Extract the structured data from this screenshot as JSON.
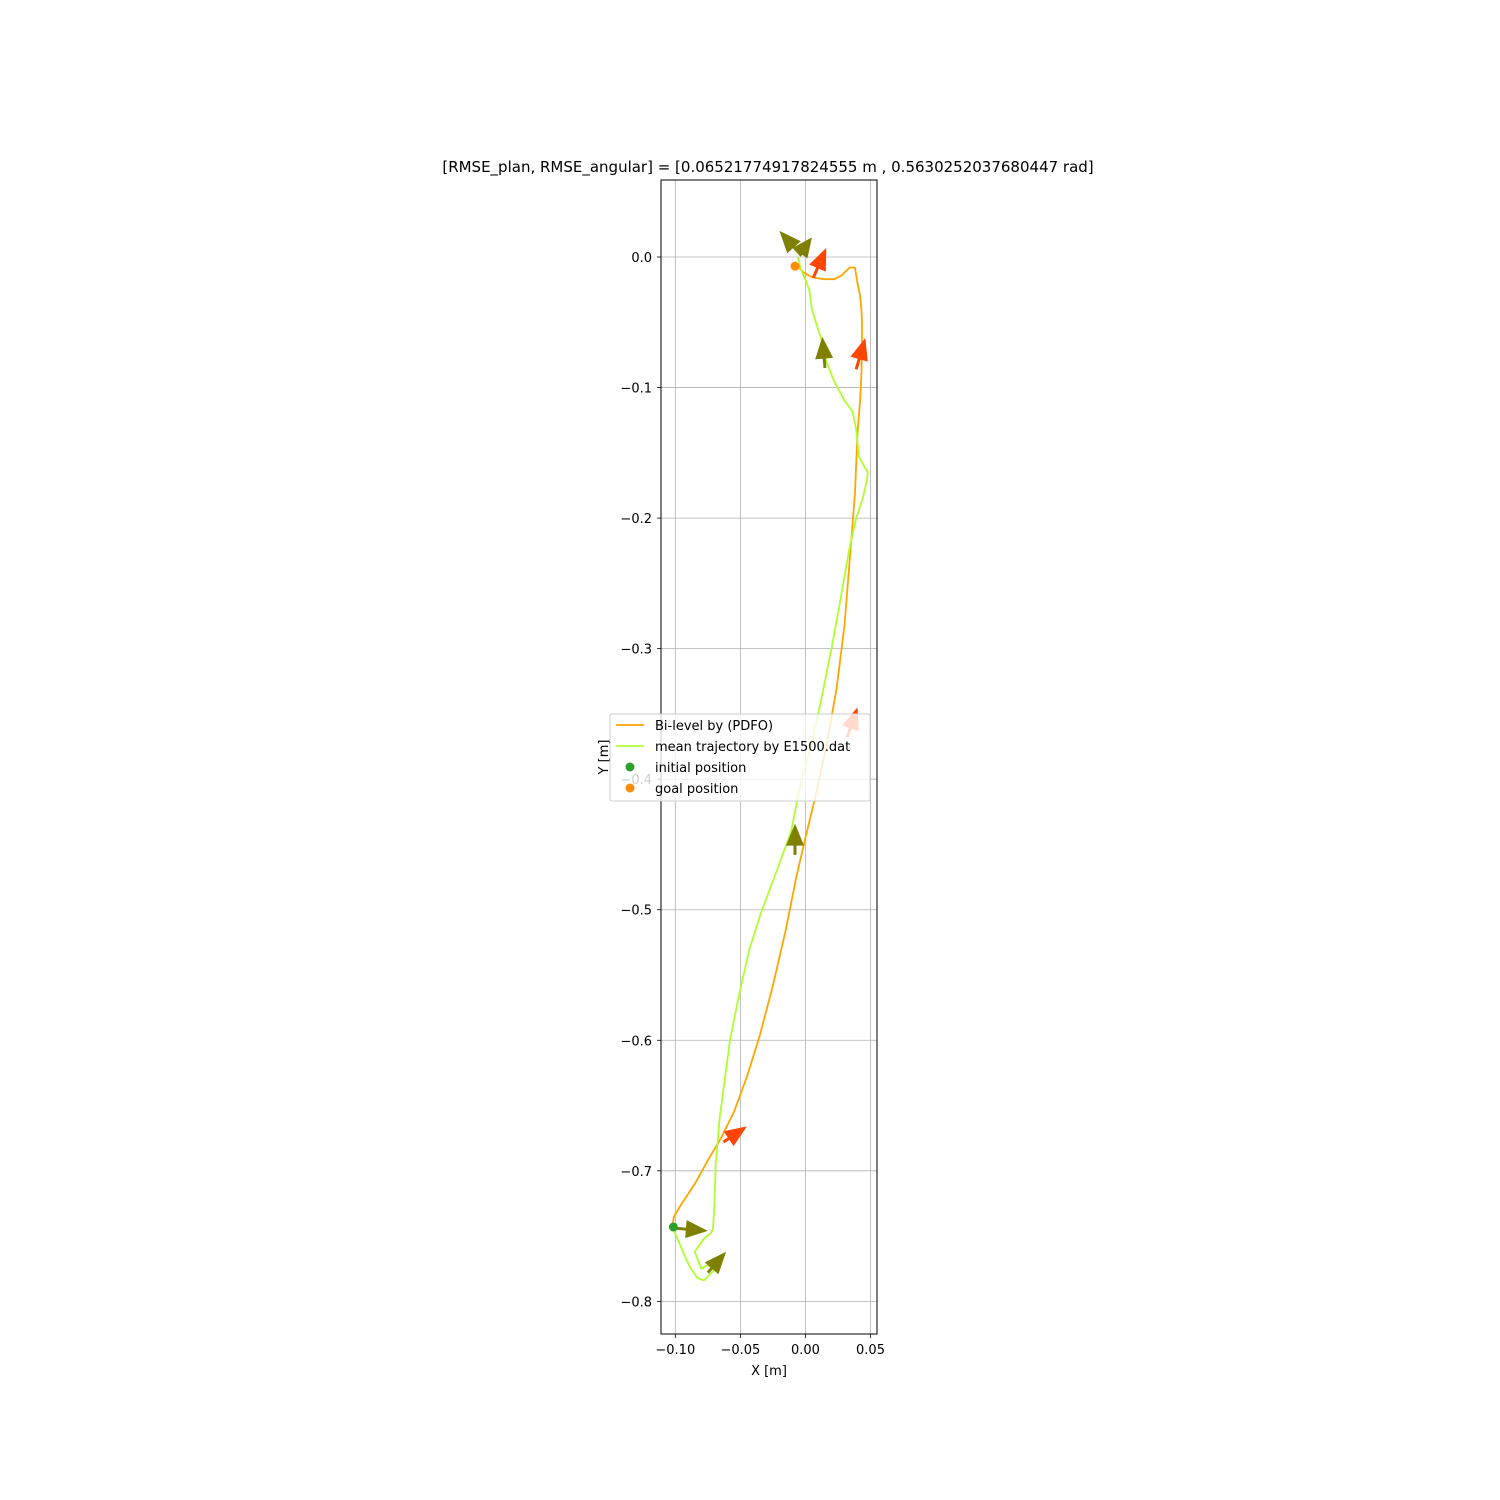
{
  "chart_data": {
    "type": "line",
    "title": "[RMSE_plan, RMSE_angular] = [0.06521774917824555 m , 0.5630252037680447 rad]",
    "xlabel": "X [m]",
    "ylabel": "Y [m]",
    "xlim": [
      -0.111,
      0.055
    ],
    "ylim": [
      -0.825,
      0.059
    ],
    "xticks": [
      -0.1,
      -0.05,
      0.0,
      0.05
    ],
    "xtick_labels": [
      "−0.10",
      "−0.05",
      "0.00",
      "0.05"
    ],
    "yticks": [
      0.0,
      -0.1,
      -0.2,
      -0.3,
      -0.4,
      -0.5,
      -0.6,
      -0.7,
      -0.8
    ],
    "ytick_labels": [
      "0.0",
      "−0.1",
      "−0.2",
      "−0.3",
      "−0.4",
      "−0.5",
      "−0.6",
      "−0.7",
      "−0.8"
    ],
    "grid": true,
    "legend_position": "center-left",
    "series": [
      {
        "name": "Bi-level by (PDFO)",
        "color": "#ffa500",
        "x": [
          -0.1025,
          -0.101,
          -0.095,
          -0.085,
          -0.075,
          -0.065,
          -0.055,
          -0.045,
          -0.035,
          -0.025,
          -0.015,
          -0.007,
          0.0,
          0.008,
          0.016,
          0.024,
          0.03,
          0.034,
          0.038,
          0.04,
          0.042,
          0.043,
          0.0435,
          0.0435,
          0.043,
          0.042,
          0.04,
          0.038,
          0.034,
          0.028,
          0.022,
          0.014,
          0.008,
          0.004,
          -0.001,
          -0.006
        ],
        "y": [
          -0.743,
          -0.735,
          -0.725,
          -0.71,
          -0.692,
          -0.675,
          -0.655,
          -0.628,
          -0.596,
          -0.558,
          -0.515,
          -0.475,
          -0.445,
          -0.412,
          -0.375,
          -0.33,
          -0.282,
          -0.232,
          -0.182,
          -0.135,
          -0.11,
          -0.09,
          -0.07,
          -0.05,
          -0.04,
          -0.03,
          -0.02,
          -0.008,
          -0.008,
          -0.014,
          -0.017,
          -0.017,
          -0.016,
          -0.015,
          -0.012,
          -0.007
        ]
      },
      {
        "name": "mean trajectory by E1500.dat",
        "color": "#adff2f",
        "x": [
          -0.1025,
          -0.097,
          -0.092,
          -0.088,
          -0.083,
          -0.078,
          -0.074,
          -0.07,
          -0.075,
          -0.08,
          -0.085,
          -0.078,
          -0.073,
          -0.071,
          -0.07,
          -0.069,
          -0.066,
          -0.062,
          -0.058,
          -0.051,
          -0.043,
          -0.034,
          -0.022,
          -0.011,
          -0.004,
          0.004,
          0.012,
          0.02,
          0.027,
          0.034,
          0.039,
          0.044,
          0.047,
          0.048,
          0.045,
          0.041,
          0.039,
          0.036,
          0.03,
          0.022,
          0.016,
          0.012,
          0.008,
          0.005,
          0.003,
          -0.001,
          -0.004,
          -0.005,
          -0.006
        ],
        "y": [
          -0.743,
          -0.755,
          -0.767,
          -0.775,
          -0.782,
          -0.784,
          -0.78,
          -0.776,
          -0.772,
          -0.775,
          -0.762,
          -0.752,
          -0.748,
          -0.745,
          -0.727,
          -0.695,
          -0.66,
          -0.63,
          -0.6,
          -0.565,
          -0.53,
          -0.502,
          -0.47,
          -0.44,
          -0.405,
          -0.375,
          -0.34,
          -0.3,
          -0.262,
          -0.222,
          -0.2,
          -0.185,
          -0.172,
          -0.165,
          -0.16,
          -0.153,
          -0.132,
          -0.118,
          -0.11,
          -0.095,
          -0.08,
          -0.062,
          -0.05,
          -0.04,
          -0.025,
          -0.015,
          -0.008,
          -0.003,
          0.0
        ]
      }
    ],
    "points": [
      {
        "name": "initial position",
        "color": "#2ca02c",
        "x": -0.1015,
        "y": -0.743
      },
      {
        "name": "goal position",
        "color": "#ff8c00",
        "x": -0.008,
        "y": -0.007
      }
    ],
    "arrow_sets": [
      {
        "color": "#ff4500",
        "arrows": [
          {
            "x": 0.006,
            "y": -0.016,
            "dx": 0.01,
            "dy": 0.023
          },
          {
            "x": 0.039,
            "y": -0.086,
            "dx": 0.007,
            "dy": 0.024
          },
          {
            "x": 0.032,
            "y": -0.368,
            "dx": 0.008,
            "dy": 0.023
          },
          {
            "x": -0.063,
            "y": -0.678,
            "dx": 0.018,
            "dy": 0.012
          }
        ]
      },
      {
        "color": "#808000",
        "arrows": [
          {
            "x": -0.003,
            "y": 0.001,
            "dx": -0.017,
            "dy": 0.019
          },
          {
            "x": -0.004,
            "y": 0.003,
            "dx": 0.009,
            "dy": 0.012
          },
          {
            "x": 0.015,
            "y": -0.085,
            "dx": -0.002,
            "dy": 0.024
          },
          {
            "x": -0.008,
            "y": -0.458,
            "dx": -0.0,
            "dy": 0.024
          },
          {
            "x": -0.1,
            "y": -0.744,
            "dx": 0.025,
            "dy": -0.002
          },
          {
            "x": -0.075,
            "y": -0.778,
            "dx": 0.014,
            "dy": 0.016
          }
        ]
      }
    ],
    "legend": [
      {
        "label": "Bi-level by (PDFO)",
        "kind": "line",
        "color": "#ffa500"
      },
      {
        "label": "mean trajectory by E1500.dat",
        "kind": "line",
        "color": "#adff2f"
      },
      {
        "label": "initial position",
        "kind": "dot",
        "color": "#2ca02c"
      },
      {
        "label": "goal position",
        "kind": "dot",
        "color": "#ff8c00"
      }
    ]
  }
}
